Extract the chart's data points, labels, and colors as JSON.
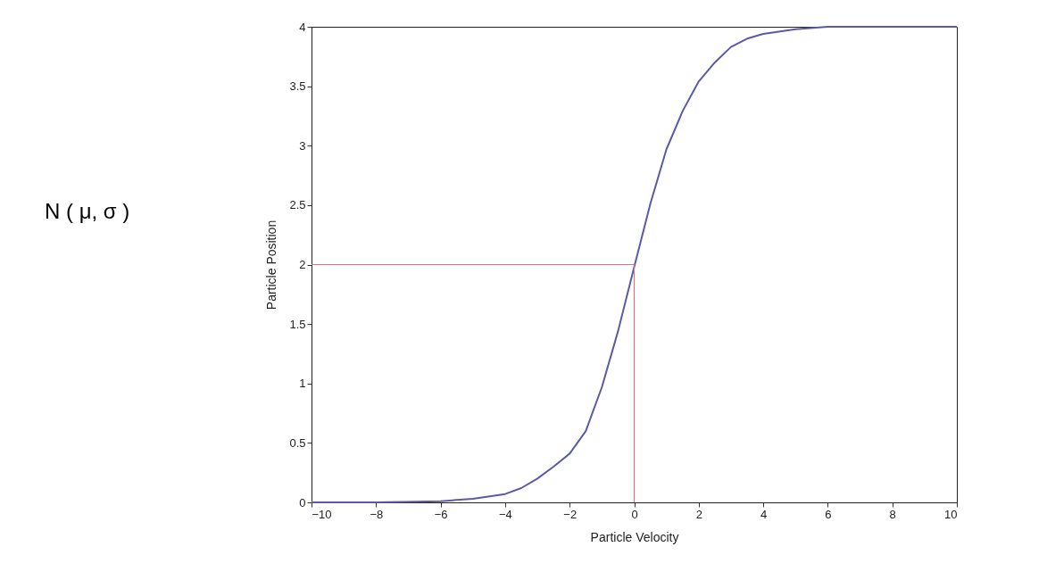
{
  "chart_data": {
    "type": "line",
    "xlabel": "Particle Velocity",
    "ylabel": "Particle Position",
    "annotations": [
      "N ( μ, σ )"
    ],
    "xlim": [
      -10,
      10
    ],
    "xticks": [
      -10,
      -8,
      -6,
      -4,
      -2,
      0,
      2,
      4,
      6,
      8,
      10
    ],
    "ylim": [
      0,
      4
    ],
    "yticks": [
      0,
      0.5,
      1,
      1.5,
      2,
      2.5,
      3,
      3.5,
      4
    ],
    "grid": false,
    "series": [
      {
        "type": "line",
        "color": "#5a5aa8",
        "x": [
          -10,
          -8,
          -6,
          -5,
          -4,
          -3.5,
          -3,
          -2.5,
          -2,
          -1.5,
          -1,
          -0.5,
          0,
          0.5,
          1,
          1.5,
          2,
          2.5,
          3,
          3.5,
          4,
          5,
          6,
          8,
          10
        ],
        "values": [
          0,
          0,
          0.01,
          0.03,
          0.07,
          0.12,
          0.2,
          0.3,
          0.41,
          0.6,
          0.97,
          1.44,
          1.98,
          2.51,
          2.97,
          3.29,
          3.54,
          3.7,
          3.83,
          3.9,
          3.94,
          3.98,
          4,
          4,
          4
        ]
      },
      {
        "type": "line",
        "color": "#c87a8a",
        "x": [
          -10,
          0,
          0
        ],
        "values": [
          2,
          2,
          0
        ]
      }
    ]
  }
}
